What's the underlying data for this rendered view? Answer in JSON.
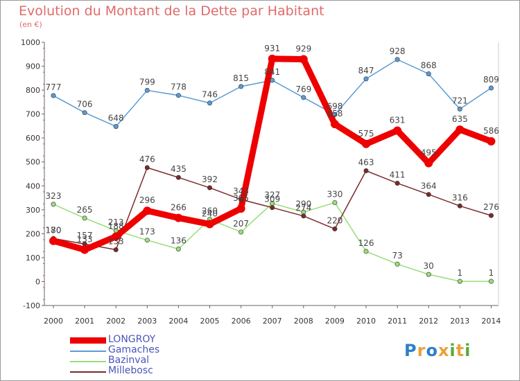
{
  "header": {
    "title": "Evolution du Montant de la Dette par Habitant",
    "unit": "(en €)"
  },
  "brand": {
    "letters": [
      {
        "ch": "P",
        "color": "#2e7fc8"
      },
      {
        "ch": "r",
        "color": "#e8a23a"
      },
      {
        "ch": "o",
        "color": "#2e7fc8"
      },
      {
        "ch": "x",
        "color": "#e8a23a"
      },
      {
        "ch": "i",
        "color": "#5aa83a"
      },
      {
        "ch": "t",
        "color": "#e8a23a"
      },
      {
        "ch": "i",
        "color": "#5aa83a"
      }
    ]
  },
  "chart_data": {
    "type": "line",
    "title": "Evolution du Montant de la Dette par Habitant",
    "subtitle": "(en €)",
    "x": [
      "2000",
      "2001",
      "2002",
      "2003",
      "2004",
      "2005",
      "2006",
      "2007",
      "2008",
      "2009",
      "2010",
      "2011",
      "2012",
      "2013",
      "2014"
    ],
    "ylim": [
      -100,
      1000
    ],
    "yticks": [
      -100,
      0,
      100,
      200,
      300,
      400,
      500,
      600,
      700,
      800,
      900,
      1000
    ],
    "grid": false,
    "legend": "bottom-left",
    "series": [
      {
        "name": "LONGROY",
        "color": "#ee0000",
        "values": [
          170,
          133,
          188,
          296,
          266,
          240,
          305,
          931,
          929,
          658,
          575,
          631,
          495,
          635,
          586
        ],
        "labels": [
          "170",
          "133",
          "188",
          "296",
          "266",
          "240",
          "305",
          "931",
          "929",
          "658",
          "575",
          "631",
          "495",
          "635",
          "586"
        ],
        "bold": true
      },
      {
        "name": "Gamaches",
        "color": "#5b9bd5",
        "values": [
          777,
          706,
          648,
          799,
          778,
          746,
          815,
          841,
          769,
          698,
          847,
          928,
          868,
          721,
          809
        ],
        "labels": [
          "777",
          "706",
          "648",
          "799",
          "778",
          "746",
          "815",
          "841",
          "769",
          "698",
          "847",
          "928",
          "868",
          "721",
          "809"
        ],
        "bold": false
      },
      {
        "name": "Bazinval",
        "color": "#99dd77",
        "values": [
          323,
          265,
          213,
          173,
          136,
          260,
          207,
          327,
          290,
          330,
          126,
          73,
          30,
          1,
          1
        ],
        "labels": [
          "323",
          "265",
          "213",
          "173",
          "136",
          "260",
          "207",
          "327",
          "290",
          "330",
          "126",
          "73",
          "30",
          "1",
          "1"
        ],
        "bold": false
      },
      {
        "name": "Millebosc",
        "color": "#7a2a2a",
        "values": [
          180,
          157,
          133,
          476,
          435,
          392,
          343,
          309,
          274,
          220,
          463,
          411,
          364,
          316,
          276
        ],
        "labels": [
          "180",
          "157",
          "133",
          "476",
          "435",
          "392",
          "343",
          "309",
          "274",
          "220",
          "463",
          "411",
          "364",
          "316",
          "276"
        ],
        "bold": false
      }
    ]
  }
}
